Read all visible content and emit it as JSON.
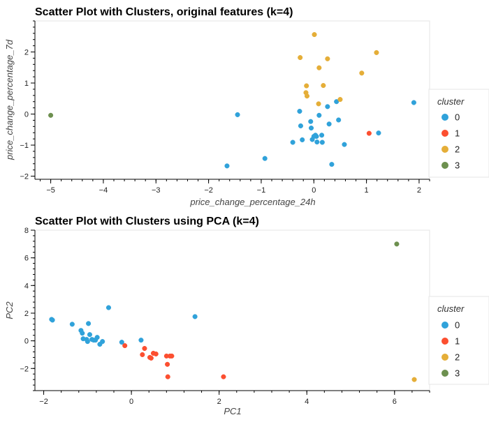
{
  "colors": {
    "cluster_0": "#30a2da",
    "cluster_1": "#fc4f30",
    "cluster_2": "#e5ae38",
    "cluster_3": "#6d904f"
  },
  "chart_data": [
    {
      "type": "scatter",
      "title": "Scatter Plot with Clusters, original features (k=4)",
      "xlabel": "price_change_percentage_24h",
      "ylabel": "price_change_percentage_7d",
      "xlim": [
        -5.3,
        2.2
      ],
      "ylim": [
        -2.1,
        3.0
      ],
      "xticks": [
        -5,
        -4,
        -3,
        -2,
        -1,
        0,
        1,
        2
      ],
      "yticks": [
        -2,
        -1,
        0,
        1,
        2
      ],
      "legend_title": "cluster",
      "legend": [
        "0",
        "1",
        "2",
        "3"
      ],
      "grid": false,
      "series": [
        {
          "name": "0",
          "points": [
            [
              -1.65,
              -1.67
            ],
            [
              -1.45,
              -0.02
            ],
            [
              -0.93,
              -1.43
            ],
            [
              -0.4,
              -0.91
            ],
            [
              -0.27,
              0.09
            ],
            [
              -0.25,
              -0.38
            ],
            [
              -0.22,
              -0.83
            ],
            [
              -0.06,
              -0.24
            ],
            [
              -0.05,
              -0.45
            ],
            [
              -0.03,
              -0.82
            ],
            [
              0.0,
              -0.72
            ],
            [
              0.03,
              -0.68
            ],
            [
              0.05,
              -0.72
            ],
            [
              0.06,
              -0.9
            ],
            [
              0.1,
              -0.04
            ],
            [
              0.15,
              -0.68
            ],
            [
              0.16,
              -0.91
            ],
            [
              0.26,
              0.24
            ],
            [
              0.29,
              -0.32
            ],
            [
              0.34,
              -1.62
            ],
            [
              0.43,
              0.4
            ],
            [
              0.47,
              -0.19
            ],
            [
              0.58,
              -0.98
            ],
            [
              1.23,
              -0.61
            ],
            [
              1.9,
              0.37
            ]
          ]
        },
        {
          "name": "1",
          "points": [
            [
              1.05,
              -0.62
            ]
          ]
        },
        {
          "name": "2",
          "points": [
            [
              -0.26,
              1.82
            ],
            [
              -0.15,
              0.69
            ],
            [
              -0.14,
              0.91
            ],
            [
              -0.13,
              0.58
            ],
            [
              0.01,
              2.56
            ],
            [
              0.09,
              0.33
            ],
            [
              0.1,
              1.49
            ],
            [
              0.18,
              0.92
            ],
            [
              0.26,
              1.78
            ],
            [
              0.5,
              0.47
            ],
            [
              0.91,
              1.32
            ],
            [
              1.19,
              1.98
            ]
          ]
        },
        {
          "name": "3",
          "points": [
            [
              -5.0,
              -0.04
            ]
          ]
        }
      ]
    },
    {
      "type": "scatter",
      "title": "Scatter Plot with Clusters using PCA (k=4)",
      "xlabel": "PC1",
      "ylabel": "PC2",
      "xlim": [
        -2.2,
        6.8
      ],
      "ylim": [
        -3.6,
        8.0
      ],
      "xticks": [
        -2,
        0,
        2,
        4,
        6
      ],
      "yticks": [
        -2,
        0,
        2,
        4,
        6,
        8
      ],
      "legend_title": "cluster",
      "legend": [
        "0",
        "1",
        "2",
        "3"
      ],
      "grid": false,
      "series": [
        {
          "name": "0",
          "points": [
            [
              -1.82,
              1.55
            ],
            [
              -1.8,
              1.5
            ],
            [
              -1.35,
              1.2
            ],
            [
              -1.15,
              0.75
            ],
            [
              -1.12,
              0.55
            ],
            [
              -1.1,
              0.15
            ],
            [
              -1.02,
              0.1
            ],
            [
              -1.0,
              -0.05
            ],
            [
              -0.98,
              1.25
            ],
            [
              -0.95,
              0.45
            ],
            [
              -0.9,
              0.1
            ],
            [
              -0.86,
              0.05
            ],
            [
              -0.82,
              0.05
            ],
            [
              -0.78,
              0.25
            ],
            [
              -0.72,
              -0.25
            ],
            [
              -0.66,
              -0.05
            ],
            [
              -0.52,
              2.4
            ],
            [
              -0.22,
              -0.1
            ],
            [
              0.22,
              0.05
            ],
            [
              1.45,
              1.75
            ]
          ]
        },
        {
          "name": "1",
          "points": [
            [
              -0.15,
              -0.35
            ],
            [
              0.25,
              -1.0
            ],
            [
              0.3,
              -0.55
            ],
            [
              0.42,
              -1.2
            ],
            [
              0.45,
              -1.25
            ],
            [
              0.5,
              -0.9
            ],
            [
              0.56,
              -0.95
            ],
            [
              0.8,
              -1.1
            ],
            [
              0.82,
              -1.7
            ],
            [
              0.83,
              -2.6
            ],
            [
              0.88,
              -1.1
            ],
            [
              0.92,
              -1.1
            ],
            [
              2.1,
              -2.6
            ]
          ]
        },
        {
          "name": "2",
          "points": [
            [
              6.45,
              -2.8
            ]
          ]
        },
        {
          "name": "3",
          "points": [
            [
              6.05,
              7.0
            ]
          ]
        }
      ]
    }
  ]
}
